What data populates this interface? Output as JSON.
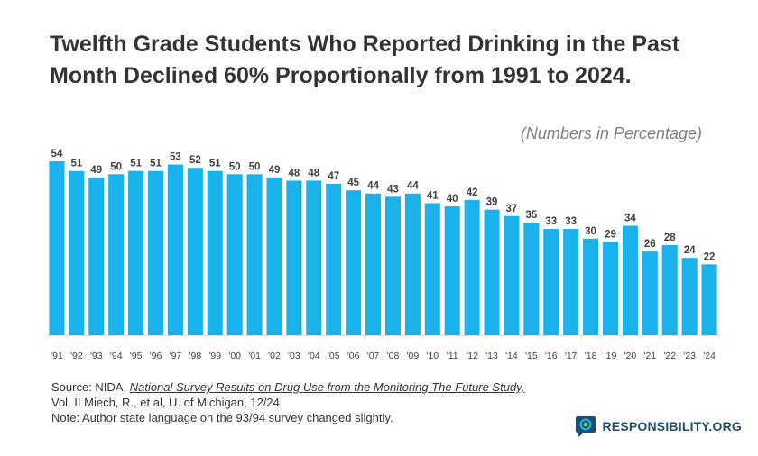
{
  "header": {
    "title_line1": "Twelfth Grade Students Who Reported Drinking in the Past",
    "title_line2": "Month Declined 60% Proportionally from 1991 to 2024.",
    "subtitle": "(Numbers in Percentage)"
  },
  "chart_data": {
    "type": "bar",
    "title": "Twelfth Grade Students Who Reported Drinking in the Past Month Declined 60% Proportionally from 1991 to 2024.",
    "subtitle": "(Numbers in Percentage)",
    "categories": [
      "'91",
      "'92",
      "'93",
      "'94",
      "'95",
      "'96",
      "'97",
      "'98",
      "'99",
      "'00",
      "'01",
      "'02",
      "'03",
      "'04",
      "'05",
      "'06",
      "'07",
      "'08",
      "'09",
      "'10",
      "'11",
      "'12",
      "'13",
      "'14",
      "'15",
      "'16",
      "'17",
      "'18",
      "'19",
      "'20",
      "'21",
      "'22",
      "'23",
      "'24"
    ],
    "values": [
      54,
      51,
      49,
      50,
      51,
      51,
      53,
      52,
      51,
      50,
      50,
      49,
      48,
      48,
      47,
      45,
      44,
      43,
      44,
      41,
      40,
      42,
      39,
      37,
      35,
      33,
      33,
      30,
      29,
      34,
      26,
      28,
      24,
      22
    ],
    "xlabel": "",
    "ylabel": "",
    "ylim": [
      0,
      54
    ],
    "grid": false,
    "bar_color": "#1ab2ea"
  },
  "source": {
    "line1_prefix": "Source: NIDA, ",
    "line1_title": "National Survey Results on Drug Use from the Monitoring The Future Study,",
    "line2": "Vol. II Miech, R., et al, U. of Michigan, 12/24",
    "line3": "Note: Author state language on the 93/94 survey changed slightly."
  },
  "logo": {
    "text": "RESPONSIBILITY.ORG",
    "icon": "chat-bubble-icon",
    "color": "#1e4e6e"
  }
}
